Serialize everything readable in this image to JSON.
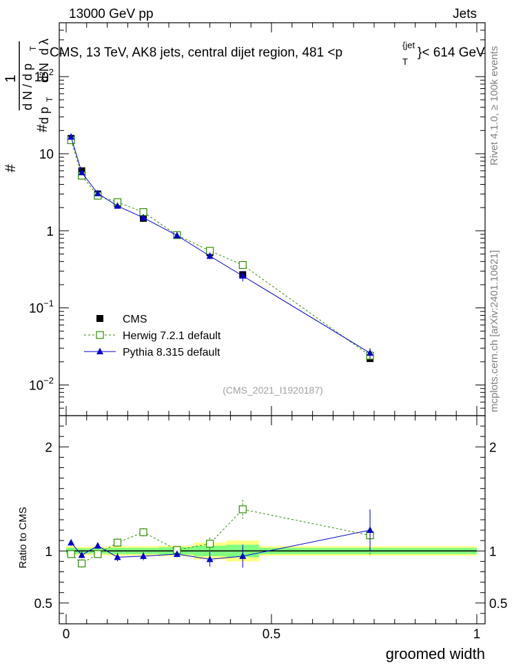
{
  "header": {
    "left": "13000 GeV pp",
    "right": "Jets"
  },
  "title": {
    "main": "CMS, 13 TeV, AK8 jets, central dijet region, 481 <p",
    "sup": "{jet",
    "sub": "T",
    "tail": "}< 614 GeV"
  },
  "ylabel": {
    "one": "1",
    "hash1": "#",
    "dN": "d N / d p",
    "dNsub": "T",
    "hash2": "#",
    "dp": "d p",
    "dpsub": "T",
    "d2n": "d²N",
    "dl": "d λ"
  },
  "side_labels": {
    "rivet": "Rivet 4.1.0, ≥ 100k events",
    "mcplots": "mcplots.cern.ch [arXiv:2401.10621]"
  },
  "watermark": "(CMS_2021_I1920187)",
  "colors": {
    "cms": "#000000",
    "herwig": "#2e8b00",
    "pythia": "#0000cc",
    "band_yellow": "#ffff80",
    "band_green": "#80ff80"
  },
  "chart_data": [
    {
      "type": "scatter",
      "panel": "main",
      "yscale": "log",
      "xlim": [
        0,
        1
      ],
      "ylim": [
        0.004,
        500
      ],
      "y_ticks": [
        "10^-2",
        "10^-1",
        "1",
        "10",
        "10^2"
      ],
      "x": [
        0.012,
        0.038,
        0.077,
        0.125,
        0.188,
        0.27,
        0.35,
        0.43,
        0.74
      ],
      "series": [
        {
          "name": "CMS",
          "marker": "filled-square",
          "values": [
            15.8,
            6.0,
            3.0,
            2.25,
            1.45,
            0.88,
            0.52,
            0.27,
            0.022
          ]
        },
        {
          "name": "Herwig 7.2.1 default",
          "marker": "open-square",
          "line": "dashed",
          "values": [
            15.0,
            5.2,
            2.85,
            2.35,
            1.75,
            0.88,
            0.55,
            0.36,
            0.024
          ],
          "errors": [
            0,
            0,
            0,
            0,
            0,
            0,
            0.04,
            0.04,
            0.002
          ]
        },
        {
          "name": "Pythia 8.315 default",
          "marker": "filled-triangle",
          "line": "solid",
          "values": [
            16.5,
            5.7,
            3.05,
            2.1,
            1.48,
            0.87,
            0.47,
            0.26,
            0.026
          ],
          "errors": [
            0.5,
            0.2,
            0.1,
            0.06,
            0.05,
            0.03,
            0.04,
            0.04,
            0.004
          ]
        }
      ],
      "legend": [
        "CMS",
        "Herwig 7.2.1 default",
        "Pythia 8.315 default"
      ],
      "legend_position": "middle-left"
    },
    {
      "type": "scatter",
      "panel": "ratio",
      "ylabel": "Ratio to CMS",
      "xlabel": "groomed width",
      "xlim": [
        0,
        1
      ],
      "ylim": [
        0.3,
        2.3
      ],
      "x_ticks": [
        "0",
        "0.5",
        "1"
      ],
      "y_ticks": [
        "0.5",
        "1",
        "2"
      ],
      "x": [
        0.012,
        0.038,
        0.077,
        0.125,
        0.188,
        0.27,
        0.35,
        0.43,
        0.74
      ],
      "band_edges": [
        0,
        0.025,
        0.05,
        0.1,
        0.15,
        0.225,
        0.31,
        0.39,
        0.47,
        1.0
      ],
      "band_yellow_half": [
        0.045,
        0.04,
        0.04,
        0.045,
        0.045,
        0.05,
        0.08,
        0.1,
        0.045
      ],
      "band_green_half": [
        0.03,
        0.025,
        0.025,
        0.03,
        0.03,
        0.035,
        0.05,
        0.06,
        0.03
      ],
      "series": [
        {
          "name": "Herwig 7.2.1 default",
          "values": [
            0.97,
            0.88,
            0.97,
            1.08,
            1.18,
            1.01,
            1.07,
            1.4,
            1.15
          ],
          "errors": [
            0.03,
            0.04,
            0.03,
            0.04,
            0.04,
            0.03,
            0.06,
            0.09,
            0.2
          ]
        },
        {
          "name": "Pythia 8.315 default",
          "values": [
            1.08,
            0.96,
            1.05,
            0.94,
            0.95,
            0.97,
            0.92,
            0.95,
            1.2
          ],
          "errors": [
            0.03,
            0.03,
            0.03,
            0.04,
            0.04,
            0.03,
            0.07,
            0.11,
            0.2
          ]
        }
      ]
    }
  ]
}
